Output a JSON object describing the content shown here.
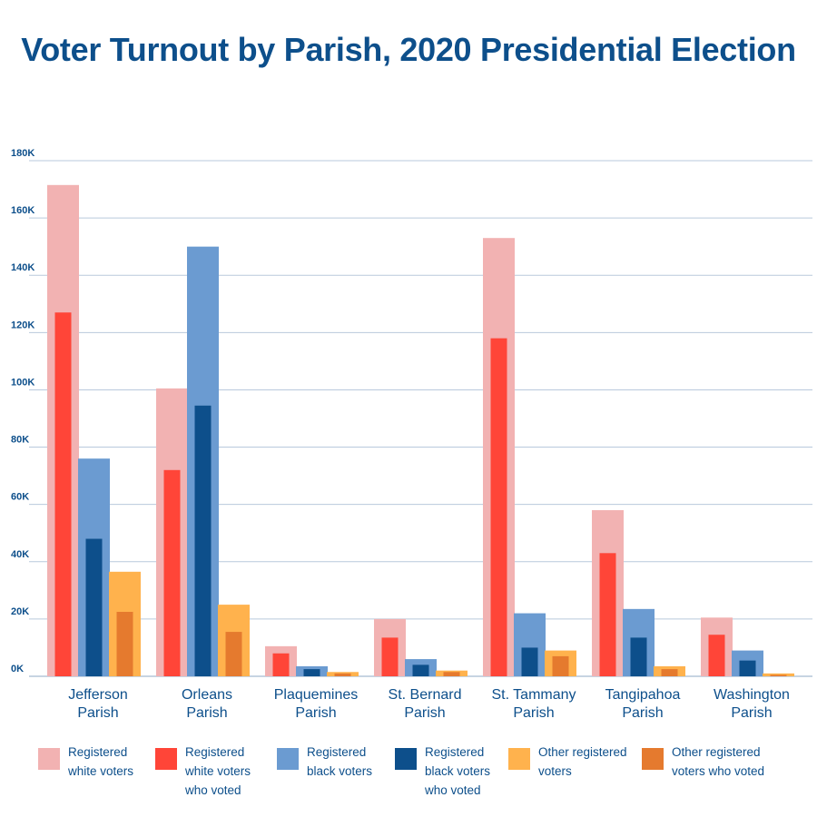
{
  "chart_data": {
    "type": "bar",
    "title": "Voter Turnout by Parish, 2020 Presidential Election",
    "ylim": [
      0,
      180000
    ],
    "yticks": [
      {
        "value": 0,
        "label": "0K"
      },
      {
        "value": 20000,
        "label": "20K"
      },
      {
        "value": 40000,
        "label": "40K"
      },
      {
        "value": 60000,
        "label": "60K"
      },
      {
        "value": 80000,
        "label": "80K"
      },
      {
        "value": 100000,
        "label": "100K"
      },
      {
        "value": 120000,
        "label": "120K"
      },
      {
        "value": 140000,
        "label": "140K"
      },
      {
        "value": 160000,
        "label": "160K"
      },
      {
        "value": 180000,
        "label": "180K"
      }
    ],
    "grid": true,
    "legend_position": "bottom",
    "categories": [
      {
        "line1": "Jefferson",
        "line2": "Parish"
      },
      {
        "line1": "Orleans",
        "line2": "Parish"
      },
      {
        "line1": "Plaquemines",
        "line2": "Parish"
      },
      {
        "line1": "St. Bernard",
        "line2": "Parish"
      },
      {
        "line1": "St. Tammany",
        "line2": "Parish"
      },
      {
        "line1": "Tangipahoa",
        "line2": "Parish"
      },
      {
        "line1": "Washington",
        "line2": "Parish"
      }
    ],
    "groups": [
      {
        "name": "Registered white voters",
        "registered_color": "#f2b2b2",
        "voted_name": "Registered white voters who voted",
        "voted_color": "#ff4538",
        "registered": [
          171500,
          100500,
          10500,
          20000,
          153000,
          58000,
          20500
        ],
        "voted": [
          127000,
          72000,
          8000,
          13500,
          118000,
          43000,
          14500
        ]
      },
      {
        "name": "Registered black voters",
        "registered_color": "#6b9bd1",
        "voted_name": "Registered black voters who voted",
        "voted_color": "#0d4f8b",
        "registered": [
          76000,
          150000,
          3500,
          6000,
          22000,
          23500,
          9000
        ],
        "voted": [
          48000,
          94500,
          2500,
          4000,
          10000,
          13500,
          5500
        ]
      },
      {
        "name": "Other registered voters",
        "registered_color": "#ffb24d",
        "voted_name": "Other registered voters who voted",
        "voted_color": "#e57a2e",
        "registered": [
          36500,
          25000,
          1500,
          2000,
          9000,
          3500,
          1000
        ],
        "voted": [
          22500,
          15500,
          1000,
          1500,
          7000,
          2500,
          500
        ]
      }
    ]
  },
  "legend": [
    {
      "label": "Registered\nwhite voters",
      "color": "#f2b2b2"
    },
    {
      "label": "Registered\nwhite voters\nwho voted",
      "color": "#ff4538"
    },
    {
      "label": "Registered\nblack voters",
      "color": "#6b9bd1"
    },
    {
      "label": "Registered\nblack voters\nwho voted",
      "color": "#0d4f8b"
    },
    {
      "label": "Other registered\nvoters",
      "color": "#ffb24d"
    },
    {
      "label": "Other registered\nvoters who voted",
      "color": "#e57a2e"
    }
  ],
  "colors": {
    "title": "#0d4f8b",
    "grid": "#b9c9dc",
    "axis": "#8fa8c4"
  }
}
